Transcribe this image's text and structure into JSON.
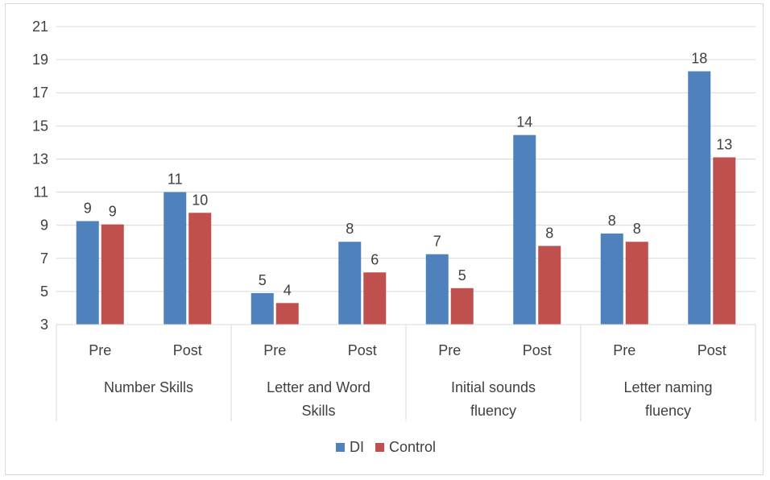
{
  "chart_data": {
    "type": "bar",
    "groups": [
      {
        "label_lines": [
          "Number Skills"
        ],
        "subcategories": [
          "Pre",
          "Post"
        ]
      },
      {
        "label_lines": [
          "Letter and Word",
          "Skills"
        ],
        "subcategories": [
          "Pre",
          "Post"
        ]
      },
      {
        "label_lines": [
          "Initial sounds",
          "fluency"
        ],
        "subcategories": [
          "Pre",
          "Post"
        ]
      },
      {
        "label_lines": [
          "Letter naming",
          "fluency"
        ],
        "subcategories": [
          "Pre",
          "Post"
        ]
      }
    ],
    "categories": [
      "Number Skills Pre",
      "Number Skills Post",
      "Letter and Word Skills Pre",
      "Letter and Word Skills Post",
      "Initial sounds fluency Pre",
      "Initial sounds fluency Post",
      "Letter naming fluency Pre",
      "Letter naming fluency Post"
    ],
    "series": [
      {
        "name": "DI",
        "color": "#4f81bd",
        "values": [
          9.25,
          11.0,
          4.9,
          8.0,
          7.25,
          14.45,
          8.5,
          18.3
        ],
        "labels": [
          "9",
          "11",
          "5",
          "8",
          "7",
          "14",
          "8",
          "18"
        ]
      },
      {
        "name": "Control",
        "color": "#c0504d",
        "values": [
          9.05,
          9.75,
          4.3,
          6.15,
          5.2,
          7.75,
          8.0,
          13.1
        ],
        "labels": [
          "9",
          "10",
          "4",
          "6",
          "5",
          "8",
          "8",
          "13"
        ]
      }
    ],
    "ylim": [
      3,
      21
    ],
    "yticks": [
      3,
      5,
      7,
      9,
      11,
      13,
      15,
      17,
      19,
      21
    ],
    "grid": true,
    "legend_position": "bottom",
    "title": "",
    "xlabel": "",
    "ylabel": ""
  },
  "colors": {
    "grid": "#d9d9d9",
    "text": "#404040"
  }
}
